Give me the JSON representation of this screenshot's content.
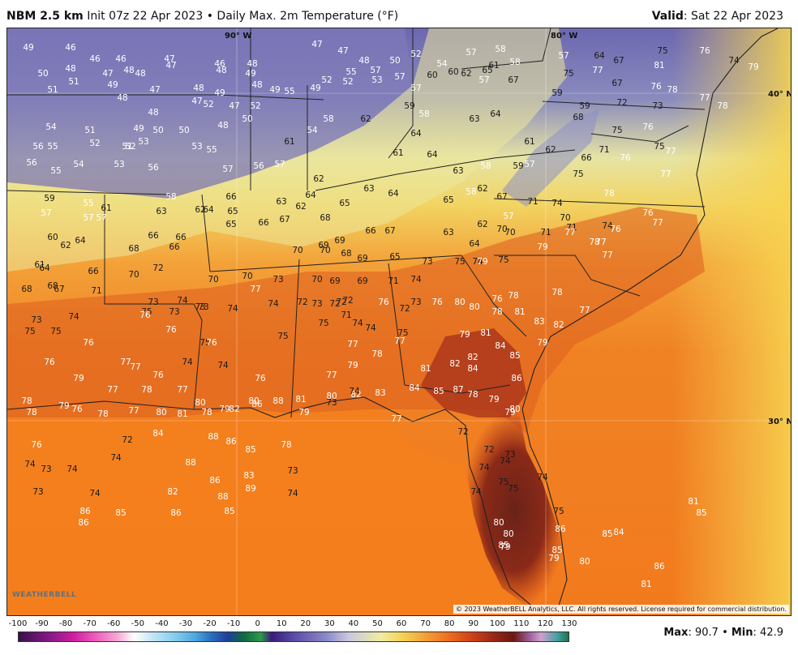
{
  "header": {
    "model": "NBM 2.5 km",
    "init": "Init 07z 22 Apr 2023",
    "product": "Daily Max. 2m Temperature (°F)",
    "valid_label": "Valid",
    "valid_value": "Sat 22 Apr 2023"
  },
  "map": {
    "coords": [
      "90° W",
      "80° W",
      "40° N",
      "30° N"
    ],
    "copyright": "© 2023 WeatherBELL Analytics, LLC. All rights reserved. License required for commercial distribution.",
    "logo_text": "WEATHERBELL",
    "temperature_labels": [
      [
        "49",
        1
      ],
      [
        "46",
        1
      ],
      [
        "46",
        1
      ],
      [
        "46",
        1
      ],
      [
        "47",
        1
      ],
      [
        "46",
        1
      ],
      [
        "48",
        1
      ],
      [
        "47",
        1
      ],
      [
        "47",
        1
      ],
      [
        "48",
        1
      ],
      [
        "50",
        1
      ],
      [
        "52",
        1
      ],
      [
        "54",
        1
      ],
      [
        "57",
        1
      ],
      [
        "58",
        1
      ],
      [
        "58",
        1
      ],
      [
        "57",
        1
      ],
      [
        "64",
        1
      ],
      [
        "67",
        1
      ],
      [
        "75",
        1
      ],
      [
        "76",
        1
      ],
      [
        "74",
        1
      ],
      [
        "79",
        1
      ],
      [
        "50",
        1
      ],
      [
        "48",
        1
      ],
      [
        "47",
        1
      ],
      [
        "48",
        1
      ],
      [
        "47",
        1
      ],
      [
        "48",
        1
      ],
      [
        "49",
        1
      ],
      [
        "52",
        1
      ],
      [
        "55",
        1
      ],
      [
        "57",
        1
      ],
      [
        "57",
        1
      ],
      [
        "60",
        1
      ],
      [
        "62",
        1
      ],
      [
        "65",
        1
      ],
      [
        "67",
        1
      ],
      [
        "75",
        1
      ],
      [
        "77",
        1
      ],
      [
        "81",
        1
      ],
      [
        "51",
        1
      ],
      [
        "49",
        1
      ],
      [
        "48",
        1
      ],
      [
        "47",
        1
      ],
      [
        "48",
        1
      ],
      [
        "49",
        1
      ],
      [
        "47",
        1
      ],
      [
        "48",
        1
      ],
      [
        "49",
        1
      ],
      [
        "49",
        1
      ],
      [
        "52",
        1
      ],
      [
        "53",
        1
      ],
      [
        "57",
        1
      ],
      [
        "60",
        1
      ],
      [
        "57",
        1
      ],
      [
        "59",
        1
      ],
      [
        "61",
        1
      ],
      [
        "67",
        1
      ],
      [
        "76",
        1
      ],
      [
        "78",
        1
      ],
      [
        "51",
        1
      ],
      [
        "48",
        1
      ],
      [
        "48",
        1
      ],
      [
        "47",
        1
      ],
      [
        "52",
        1
      ],
      [
        "52",
        1
      ],
      [
        "55",
        1
      ],
      [
        "59",
        1
      ],
      [
        "58",
        1
      ],
      [
        "64",
        1
      ],
      [
        "59",
        1
      ],
      [
        "72",
        1
      ],
      [
        "73",
        1
      ],
      [
        "77",
        1
      ],
      [
        "78",
        1
      ],
      [
        "54",
        1
      ],
      [
        "51",
        1
      ],
      [
        "50",
        1
      ],
      [
        "50",
        1
      ],
      [
        "48",
        1
      ],
      [
        "50",
        1
      ],
      [
        "54",
        1
      ],
      [
        "58",
        1
      ],
      [
        "62",
        1
      ],
      [
        "63",
        1
      ],
      [
        "68",
        1
      ],
      [
        "75",
        1
      ],
      [
        "76",
        1
      ],
      [
        "56",
        1
      ],
      [
        "55",
        1
      ],
      [
        "52",
        1
      ],
      [
        "52",
        1
      ],
      [
        "49",
        1
      ],
      [
        "51",
        1
      ],
      [
        "53",
        1
      ],
      [
        "53",
        1
      ],
      [
        "55",
        1
      ],
      [
        "61",
        1
      ],
      [
        "64",
        1
      ],
      [
        "61",
        1
      ],
      [
        "62",
        1
      ],
      [
        "66",
        1
      ],
      [
        "71",
        1
      ],
      [
        "76",
        1
      ],
      [
        "75",
        1
      ],
      [
        "77",
        1
      ],
      [
        "56",
        1
      ],
      [
        "55",
        1
      ],
      [
        "54",
        1
      ],
      [
        "53",
        1
      ],
      [
        "56",
        1
      ],
      [
        "57",
        1
      ],
      [
        "56",
        1
      ],
      [
        "57",
        1
      ],
      [
        "62",
        1
      ],
      [
        "61",
        1
      ],
      [
        "64",
        1
      ],
      [
        "63",
        1
      ],
      [
        "58",
        1
      ],
      [
        "59",
        1
      ],
      [
        "57",
        1
      ],
      [
        "75",
        1
      ],
      [
        "77",
        1
      ],
      [
        "59",
        1
      ],
      [
        "55",
        1
      ],
      [
        "58",
        1
      ],
      [
        "62",
        1
      ],
      [
        "66",
        1
      ],
      [
        "63",
        1
      ],
      [
        "64",
        1
      ],
      [
        "65",
        1
      ],
      [
        "63",
        1
      ],
      [
        "64",
        1
      ],
      [
        "65",
        1
      ],
      [
        "58",
        1
      ],
      [
        "62",
        1
      ],
      [
        "67",
        1
      ],
      [
        "71",
        1
      ],
      [
        "74",
        1
      ],
      [
        "78",
        1
      ],
      [
        "57",
        1
      ],
      [
        "57",
        1
      ],
      [
        "57",
        1
      ],
      [
        "61",
        1
      ],
      [
        "63",
        1
      ],
      [
        "64",
        1
      ],
      [
        "65",
        1
      ],
      [
        "62",
        1
      ],
      [
        "68",
        1
      ],
      [
        "62",
        1
      ],
      [
        "57",
        1
      ],
      [
        "70",
        1
      ],
      [
        "71",
        1
      ],
      [
        "74",
        1
      ],
      [
        "76",
        1
      ],
      [
        "77",
        1
      ],
      [
        "60",
        1
      ],
      [
        "62",
        1
      ],
      [
        "64",
        1
      ],
      [
        "66",
        1
      ],
      [
        "66",
        1
      ],
      [
        "65",
        1
      ],
      [
        "66",
        1
      ],
      [
        "67",
        1
      ],
      [
        "69",
        1
      ],
      [
        "69",
        1
      ],
      [
        "66",
        1
      ],
      [
        "67",
        1
      ],
      [
        "63",
        1
      ],
      [
        "64",
        1
      ],
      [
        "70",
        1
      ],
      [
        "70",
        1
      ],
      [
        "71",
        1
      ],
      [
        "77",
        1
      ],
      [
        "77",
        1
      ],
      [
        "76",
        1
      ],
      [
        "61",
        1
      ],
      [
        "68",
        1
      ],
      [
        "68",
        1
      ],
      [
        "66",
        1
      ],
      [
        "70",
        1
      ],
      [
        "70",
        1
      ],
      [
        "68",
        1
      ],
      [
        "69",
        1
      ],
      [
        "65",
        1
      ],
      [
        "73",
        1
      ],
      [
        "74",
        1
      ],
      [
        "75",
        1
      ],
      [
        "79",
        1
      ],
      [
        "78",
        1
      ],
      [
        "77",
        1
      ],
      [
        "64",
        1
      ],
      [
        "66",
        1
      ],
      [
        "70",
        1
      ],
      [
        "72",
        1
      ],
      [
        "70",
        1
      ],
      [
        "70",
        1
      ],
      [
        "73",
        1
      ],
      [
        "70",
        1
      ],
      [
        "69",
        1
      ],
      [
        "69",
        1
      ],
      [
        "71",
        1
      ],
      [
        "74",
        1
      ],
      [
        "75",
        1
      ],
      [
        "79",
        1
      ],
      [
        "78",
        1
      ],
      [
        "78",
        1
      ],
      [
        "68",
        1
      ],
      [
        "67",
        1
      ],
      [
        "71",
        1
      ],
      [
        "73",
        1
      ],
      [
        "74",
        1
      ],
      [
        "73",
        1
      ],
      [
        "77",
        1
      ],
      [
        "74",
        1
      ],
      [
        "72",
        1
      ],
      [
        "73",
        1
      ],
      [
        "72",
        1
      ],
      [
        "72",
        1
      ],
      [
        "72",
        1
      ],
      [
        "73",
        1
      ],
      [
        "76",
        1
      ],
      [
        "80",
        1
      ],
      [
        "80",
        1
      ],
      [
        "76",
        1
      ],
      [
        "73",
        1
      ],
      [
        "74",
        1
      ],
      [
        "75",
        1
      ],
      [
        "73",
        1
      ],
      [
        "73",
        1
      ],
      [
        "74",
        1
      ],
      [
        "72",
        1
      ],
      [
        "71",
        1
      ],
      [
        "76",
        1
      ],
      [
        "78",
        1
      ],
      [
        "81",
        1
      ],
      [
        "77",
        1
      ],
      [
        "75",
        1
      ],
      [
        "75",
        1
      ],
      [
        "76",
        1
      ],
      [
        "76",
        1
      ],
      [
        "75",
        1
      ],
      [
        "75",
        1
      ],
      [
        "74",
        1
      ],
      [
        "74",
        1
      ],
      [
        "75",
        1
      ],
      [
        "79",
        1
      ],
      [
        "81",
        1
      ],
      [
        "83",
        1
      ],
      [
        "82",
        1
      ],
      [
        "76",
        1
      ],
      [
        "77",
        1
      ],
      [
        "74",
        1
      ],
      [
        "75",
        1
      ],
      [
        "76",
        1
      ],
      [
        "77",
        1
      ],
      [
        "78",
        1
      ],
      [
        "77",
        1
      ],
      [
        "82",
        1
      ],
      [
        "84",
        1
      ],
      [
        "85",
        1
      ],
      [
        "79",
        1
      ],
      [
        "76",
        1
      ],
      [
        "79",
        1
      ],
      [
        "77",
        1
      ],
      [
        "76",
        1
      ],
      [
        "74",
        1
      ],
      [
        "76",
        1
      ],
      [
        "77",
        1
      ],
      [
        "79",
        1
      ],
      [
        "81",
        1
      ],
      [
        "82",
        1
      ],
      [
        "84",
        1
      ],
      [
        "86",
        1
      ],
      [
        "78",
        1
      ],
      [
        "78",
        1
      ],
      [
        "77",
        1
      ],
      [
        "78",
        1
      ],
      [
        "77",
        1
      ],
      [
        "80",
        1
      ],
      [
        "78",
        1
      ],
      [
        "79",
        1
      ],
      [
        "80",
        1
      ],
      [
        "81",
        1
      ],
      [
        "80",
        1
      ],
      [
        "82",
        1
      ],
      [
        "83",
        1
      ],
      [
        "84",
        1
      ],
      [
        "85",
        1
      ],
      [
        "87",
        1
      ],
      [
        "78",
        1
      ],
      [
        "79",
        1
      ],
      [
        "79",
        1
      ],
      [
        "80",
        1
      ],
      [
        "79",
        1
      ],
      [
        "76",
        1
      ],
      [
        "78",
        1
      ],
      [
        "77",
        1
      ],
      [
        "80",
        1
      ],
      [
        "81",
        1
      ],
      [
        "82",
        1
      ],
      [
        "86",
        1
      ],
      [
        "88",
        1
      ],
      [
        "79",
        1
      ],
      [
        "73",
        1
      ],
      [
        "74",
        1
      ],
      [
        "77",
        1
      ],
      [
        "76",
        1
      ],
      [
        "72",
        1
      ],
      [
        "84",
        1
      ],
      [
        "88",
        1
      ],
      [
        "86",
        1
      ],
      [
        "85",
        1
      ],
      [
        "78",
        1
      ],
      [
        "72",
        1
      ],
      [
        "72",
        1
      ],
      [
        "73",
        1
      ],
      [
        "74",
        1
      ],
      [
        "73",
        1
      ],
      [
        "74",
        1
      ],
      [
        "74",
        1
      ],
      [
        "88",
        1
      ],
      [
        "86",
        1
      ],
      [
        "83",
        1
      ],
      [
        "73",
        1
      ],
      [
        "74",
        1
      ],
      [
        "74",
        1
      ],
      [
        "74",
        1
      ],
      [
        "73",
        1
      ],
      [
        "74",
        1
      ],
      [
        "82",
        1
      ],
      [
        "88",
        1
      ],
      [
        "89",
        1
      ],
      [
        "74",
        1
      ],
      [
        "74",
        1
      ],
      [
        "75",
        1
      ],
      [
        "75",
        1
      ],
      [
        "86",
        1
      ],
      [
        "85",
        1
      ],
      [
        "86",
        1
      ],
      [
        "85",
        1
      ],
      [
        "80",
        1
      ],
      [
        "80",
        1
      ],
      [
        "75",
        1
      ],
      [
        "86",
        1
      ],
      [
        "85",
        1
      ],
      [
        "84",
        1
      ],
      [
        "86",
        1
      ],
      [
        "79",
        1
      ],
      [
        "85",
        1
      ],
      [
        "85",
        1
      ],
      [
        "79",
        1
      ],
      [
        "80",
        1
      ],
      [
        "81",
        1
      ],
      [
        "85",
        1
      ],
      [
        "86",
        1
      ],
      [
        "81",
        1
      ]
    ]
  },
  "scale": {
    "ticks": [
      "-100",
      "-90",
      "-80",
      "-70",
      "-60",
      "-50",
      "-40",
      "-30",
      "-20",
      "-10",
      "0",
      "10",
      "20",
      "30",
      "40",
      "50",
      "60",
      "70",
      "80",
      "90",
      "100",
      "110",
      "120",
      "130"
    ]
  },
  "stats": {
    "max_label": "Max",
    "max_value": "90.7",
    "min_label": "Min",
    "min_value": "42.9"
  }
}
